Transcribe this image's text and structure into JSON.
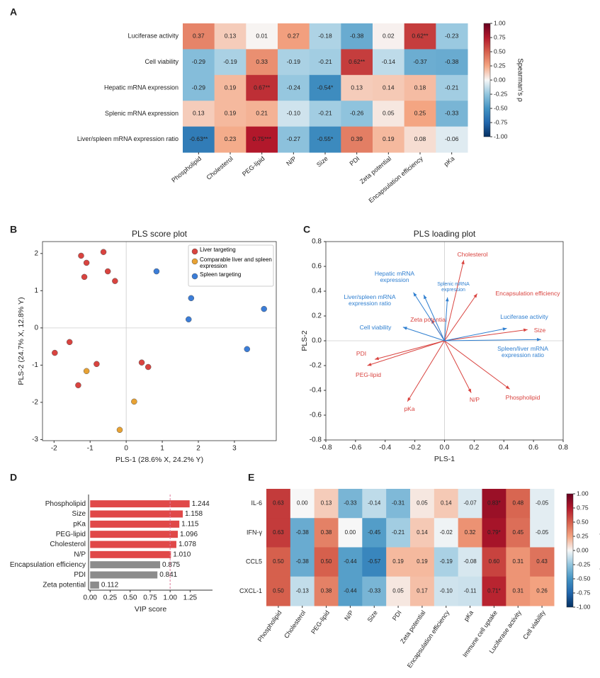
{
  "chart_data": [
    {
      "type": "heatmap",
      "panel": "A",
      "rows": [
        "Luciferase activity",
        "Cell viability",
        "Hepatic mRNA expression",
        "Splenic mRNA expression",
        "Liver/spleen mRNA expression ratio"
      ],
      "columns": [
        "Phospholipid",
        "Cholesterol",
        "PEG-lipid",
        "N/P",
        "Size",
        "PDI",
        "Zeta potential",
        "Encapsulation efficiency",
        "pKa"
      ],
      "z": [
        [
          0.37,
          0.13,
          0.01,
          0.27,
          -0.18,
          -0.38,
          0.02,
          0.62,
          -0.23
        ],
        [
          -0.29,
          -0.19,
          0.33,
          -0.19,
          -0.21,
          0.62,
          -0.14,
          -0.37,
          -0.38
        ],
        [
          -0.29,
          0.19,
          0.67,
          -0.24,
          -0.54,
          0.13,
          0.14,
          0.18,
          -0.21
        ],
        [
          0.13,
          0.19,
          0.21,
          -0.1,
          -0.21,
          -0.26,
          0.05,
          0.25,
          -0.33
        ],
        [
          -0.63,
          0.23,
          0.75,
          -0.27,
          -0.55,
          0.39,
          0.19,
          0.08,
          -0.06
        ]
      ],
      "value_labels": [
        [
          "0.37",
          "0.13",
          "0.01",
          "0.27",
          "-0.18",
          "-0.38",
          "0.02",
          "0.62**",
          "-0.23"
        ],
        [
          "-0.29",
          "-0.19",
          "0.33",
          "-0.19",
          "-0.21",
          "0.62**",
          "-0.14",
          "-0.37",
          "-0.38"
        ],
        [
          "-0.29",
          "0.19",
          "0.67**",
          "-0.24",
          "-0.54*",
          "0.13",
          "0.14",
          "0.18",
          "-0.21"
        ],
        [
          "0.13",
          "0.19",
          "0.21",
          "-0.10",
          "-0.21",
          "-0.26",
          "0.05",
          "0.25",
          "-0.33"
        ],
        [
          "-0.63**",
          "0.23",
          "0.75***",
          "-0.27",
          "-0.55*",
          "0.39",
          "0.19",
          "0.08",
          "-0.06"
        ]
      ],
      "colorbar": {
        "label": "Spearman's ρ",
        "lim": [
          -1,
          1
        ],
        "ticks": [
          {
            "value": 1,
            "label": "1.00"
          },
          {
            "value": 0.75,
            "label": "0.75"
          },
          {
            "value": 0.5,
            "label": "0.50"
          },
          {
            "value": 0.25,
            "label": "0.25"
          },
          {
            "value": 0,
            "label": "0.00"
          },
          {
            "value": -0.25,
            "label": "-0.25"
          },
          {
            "value": -0.5,
            "label": "-0.50"
          },
          {
            "value": -0.75,
            "label": "-0.75"
          },
          {
            "value": -1,
            "label": "-1.00"
          }
        ]
      }
    },
    {
      "type": "scatter",
      "panel": "B",
      "title": "PLS score plot",
      "xlabel": "PLS-1 (28.6% X, 24.2% Y)",
      "ylabel": "PLS-2 (24.7% X, 12.8% Y)",
      "xlim": [
        -2.32,
        4.16
      ],
      "ylim": [
        -3.03,
        2.32
      ],
      "xticks": [
        -2,
        -1,
        0,
        1,
        2,
        3
      ],
      "yticks": [
        -3,
        -2,
        -1,
        0,
        1,
        2
      ],
      "series": [
        {
          "name": "Liver targeting",
          "color": "#d9433f",
          "x": [
            -0.63,
            -1.25,
            -1.1,
            -0.51,
            -1.16,
            -0.31,
            -1.98,
            -1.57,
            -0.82,
            -1.33,
            0.43,
            0.61
          ],
          "y": [
            2.04,
            1.94,
            1.75,
            1.52,
            1.37,
            1.26,
            -0.67,
            -0.38,
            -0.97,
            -1.54,
            -0.93,
            -1.05
          ]
        },
        {
          "name": "Comparable liver and spleen expression",
          "color": "#e8a233",
          "x": [
            -1.1,
            0.22,
            -0.18
          ],
          "y": [
            -1.16,
            -1.98,
            -2.74
          ]
        },
        {
          "name": "Spleen targeting",
          "color": "#3b7dd8",
          "x": [
            0.84,
            1.8,
            1.73,
            3.82,
            3.35
          ],
          "y": [
            1.52,
            0.8,
            0.23,
            0.51,
            -0.57
          ]
        }
      ]
    },
    {
      "type": "biplot",
      "panel": "C",
      "title": "PLS loading plot",
      "xlabel": "PLS-1",
      "ylabel": "PLS-2",
      "xlim": [
        -0.8,
        0.8
      ],
      "ylim": [
        -0.8,
        0.8
      ],
      "xticks": [
        -0.8,
        -0.6,
        -0.4,
        -0.2,
        {
          "value": 0,
          "label": "0.0"
        },
        0.2,
        0.4,
        0.6,
        0.8
      ],
      "yticks": [
        -0.8,
        -0.6,
        -0.4,
        -0.2,
        {
          "value": 0,
          "label": "0.0"
        },
        0.2,
        0.4,
        0.6,
        0.8
      ],
      "vectors": [
        {
          "label": "Cholesterol",
          "color": "#d9433f",
          "x": 0.13,
          "y": 0.65
        },
        {
          "label": "Encapsulation efficiency",
          "color": "#d9433f",
          "x": 0.22,
          "y": 0.38
        },
        {
          "label": "Size",
          "color": "#d9433f",
          "x": 0.56,
          "y": 0.09
        },
        {
          "label": "Phospholipid",
          "color": "#d9433f",
          "x": 0.44,
          "y": -0.39
        },
        {
          "label": "N/P",
          "color": "#d9433f",
          "x": 0.18,
          "y": -0.42
        },
        {
          "label": "pKa",
          "color": "#d9433f",
          "x": -0.25,
          "y": -0.49
        },
        {
          "label": "PEG-lipid",
          "color": "#d9433f",
          "x": -0.52,
          "y": -0.2
        },
        {
          "label": "PDI",
          "color": "#d9433f",
          "x": -0.47,
          "y": -0.15
        },
        {
          "label": "Zeta potential",
          "color": "#d9433f",
          "x": -0.09,
          "y": 0.17
        },
        {
          "label": "Hepatic mRNA expression",
          "color": "#2f7fd0",
          "x": -0.14,
          "y": 0.37
        },
        {
          "label": "Splenic mRNA expression",
          "color": "#2f7fd0",
          "x": 0.02,
          "y": 0.35
        },
        {
          "label": "Liver/spleen mRNA expression ratio",
          "color": "#2f7fd0",
          "x": -0.21,
          "y": 0.39
        },
        {
          "label": "Cell viability",
          "color": "#2f7fd0",
          "x": -0.28,
          "y": 0.11
        },
        {
          "label": "Luciferase activity",
          "color": "#2f7fd0",
          "x": 0.42,
          "y": 0.1
        },
        {
          "label": "Spleen/liver mRNA expression ratio",
          "color": "#2f7fd0",
          "x": 0.65,
          "y": 0.01
        }
      ]
    },
    {
      "type": "bar",
      "panel": "D",
      "xlabel": "VIP score",
      "categories": [
        "Phospholipid",
        "Size",
        "pKa",
        "PEG-lipid",
        "Cholesterol",
        "N/P",
        "Encapsulation efficiency",
        "PDI",
        "Zeta potential"
      ],
      "values": [
        1.244,
        1.158,
        1.115,
        1.096,
        1.078,
        1.01,
        0.875,
        0.841,
        0.112
      ],
      "value_labels": [
        "1.244",
        "1.158",
        "1.115",
        "1.096",
        "1.078",
        "1.010",
        "0.875",
        "0.841",
        "0.112"
      ],
      "colors": [
        "#e04848",
        "#e04848",
        "#e04848",
        "#e04848",
        "#e04848",
        "#e04848",
        "#8c8c8c",
        "#8c8c8c",
        "#8c8c8c"
      ],
      "xlim": [
        -0.02,
        1.53
      ],
      "xticks": [
        {
          "value": 0,
          "label": "0.00"
        },
        {
          "value": 0.25,
          "label": "0.25"
        },
        {
          "value": 0.5,
          "label": "0.50"
        },
        {
          "value": 0.75,
          "label": "0.75"
        },
        {
          "value": 1,
          "label": "1.00"
        },
        {
          "value": 1.25,
          "label": "1.25"
        }
      ],
      "threshold": 1
    },
    {
      "type": "heatmap",
      "panel": "E",
      "rows": [
        "IL-6",
        "IFN-γ",
        "CCL5",
        "CXCL-1"
      ],
      "columns": [
        "Phospholipid",
        "Cholesterol",
        "PEG-lipid",
        "N/P",
        "Size",
        "PDI",
        "Zeta potential",
        "Encapsulation efficiency",
        "pKa",
        "Immune cell uptake",
        "Luciferase activity",
        "Cell viability"
      ],
      "z": [
        [
          0.63,
          0,
          0.13,
          -0.33,
          -0.14,
          -0.31,
          0.05,
          0.14,
          -0.07,
          0.83,
          0.48,
          -0.05
        ],
        [
          0.63,
          -0.38,
          0.38,
          0,
          -0.45,
          -0.21,
          0.14,
          -0.02,
          0.32,
          0.79,
          0.45,
          -0.05
        ],
        [
          0.5,
          -0.38,
          0.5,
          -0.44,
          -0.57,
          0.19,
          0.19,
          -0.19,
          -0.08,
          0.6,
          0.31,
          0.43
        ],
        [
          0.5,
          -0.13,
          0.38,
          -0.44,
          -0.33,
          0.05,
          0.17,
          -0.1,
          -0.11,
          0.71,
          0.31,
          0.26
        ]
      ],
      "value_labels": [
        [
          "0.63",
          "0.00",
          "0.13",
          "-0.33",
          "-0.14",
          "-0.31",
          "0.05",
          "0.14",
          "-0.07",
          "0.83*",
          "0.48",
          "-0.05"
        ],
        [
          "0.63",
          "-0.38",
          "0.38",
          "0.00",
          "-0.45",
          "-0.21",
          "0.14",
          "-0.02",
          "0.32",
          "0.79*",
          "0.45",
          "-0.05"
        ],
        [
          "0.50",
          "-0.38",
          "0.50",
          "-0.44",
          "-0.57",
          "0.19",
          "0.19",
          "-0.19",
          "-0.08",
          "0.60",
          "0.31",
          "0.43"
        ],
        [
          "0.50",
          "-0.13",
          "0.38",
          "-0.44",
          "-0.33",
          "0.05",
          "0.17",
          "-0.10",
          "-0.11",
          "0.71*",
          "0.31",
          "0.26"
        ]
      ],
      "colorbar": {
        "label": "Spearman's ρ",
        "lim": [
          -1,
          1
        ],
        "ticks": [
          {
            "value": 1,
            "label": "1.00"
          },
          {
            "value": 0.75,
            "label": "0.75"
          },
          {
            "value": 0.5,
            "label": "0.50"
          },
          {
            "value": 0.25,
            "label": "0.25"
          },
          {
            "value": 0,
            "label": "0.00"
          },
          {
            "value": -0.25,
            "label": "-0.25"
          },
          {
            "value": -0.5,
            "label": "-0.50"
          },
          {
            "value": -0.75,
            "label": "-0.75"
          },
          {
            "value": -1,
            "label": "-1.00"
          }
        ]
      }
    }
  ]
}
